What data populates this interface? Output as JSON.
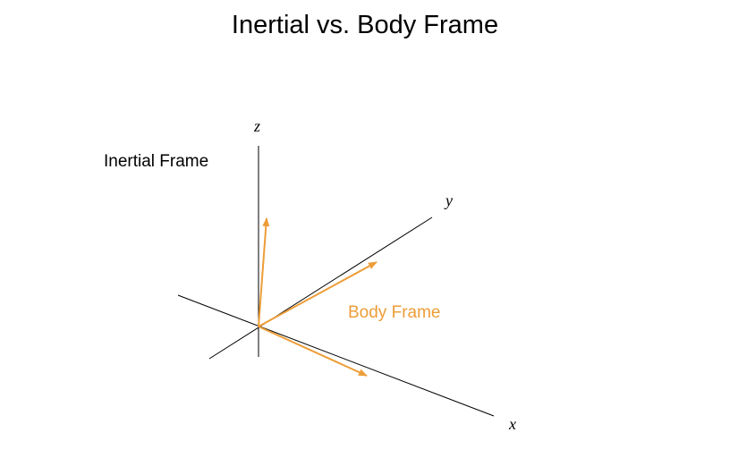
{
  "title": "Inertial vs. Body Frame",
  "inertial_frame": {
    "label": "Inertial Frame",
    "axes": {
      "z": "z",
      "y": "y",
      "x": "x"
    },
    "color": "#000000"
  },
  "body_frame": {
    "label": "Body Frame",
    "color": "#ED9D38"
  }
}
